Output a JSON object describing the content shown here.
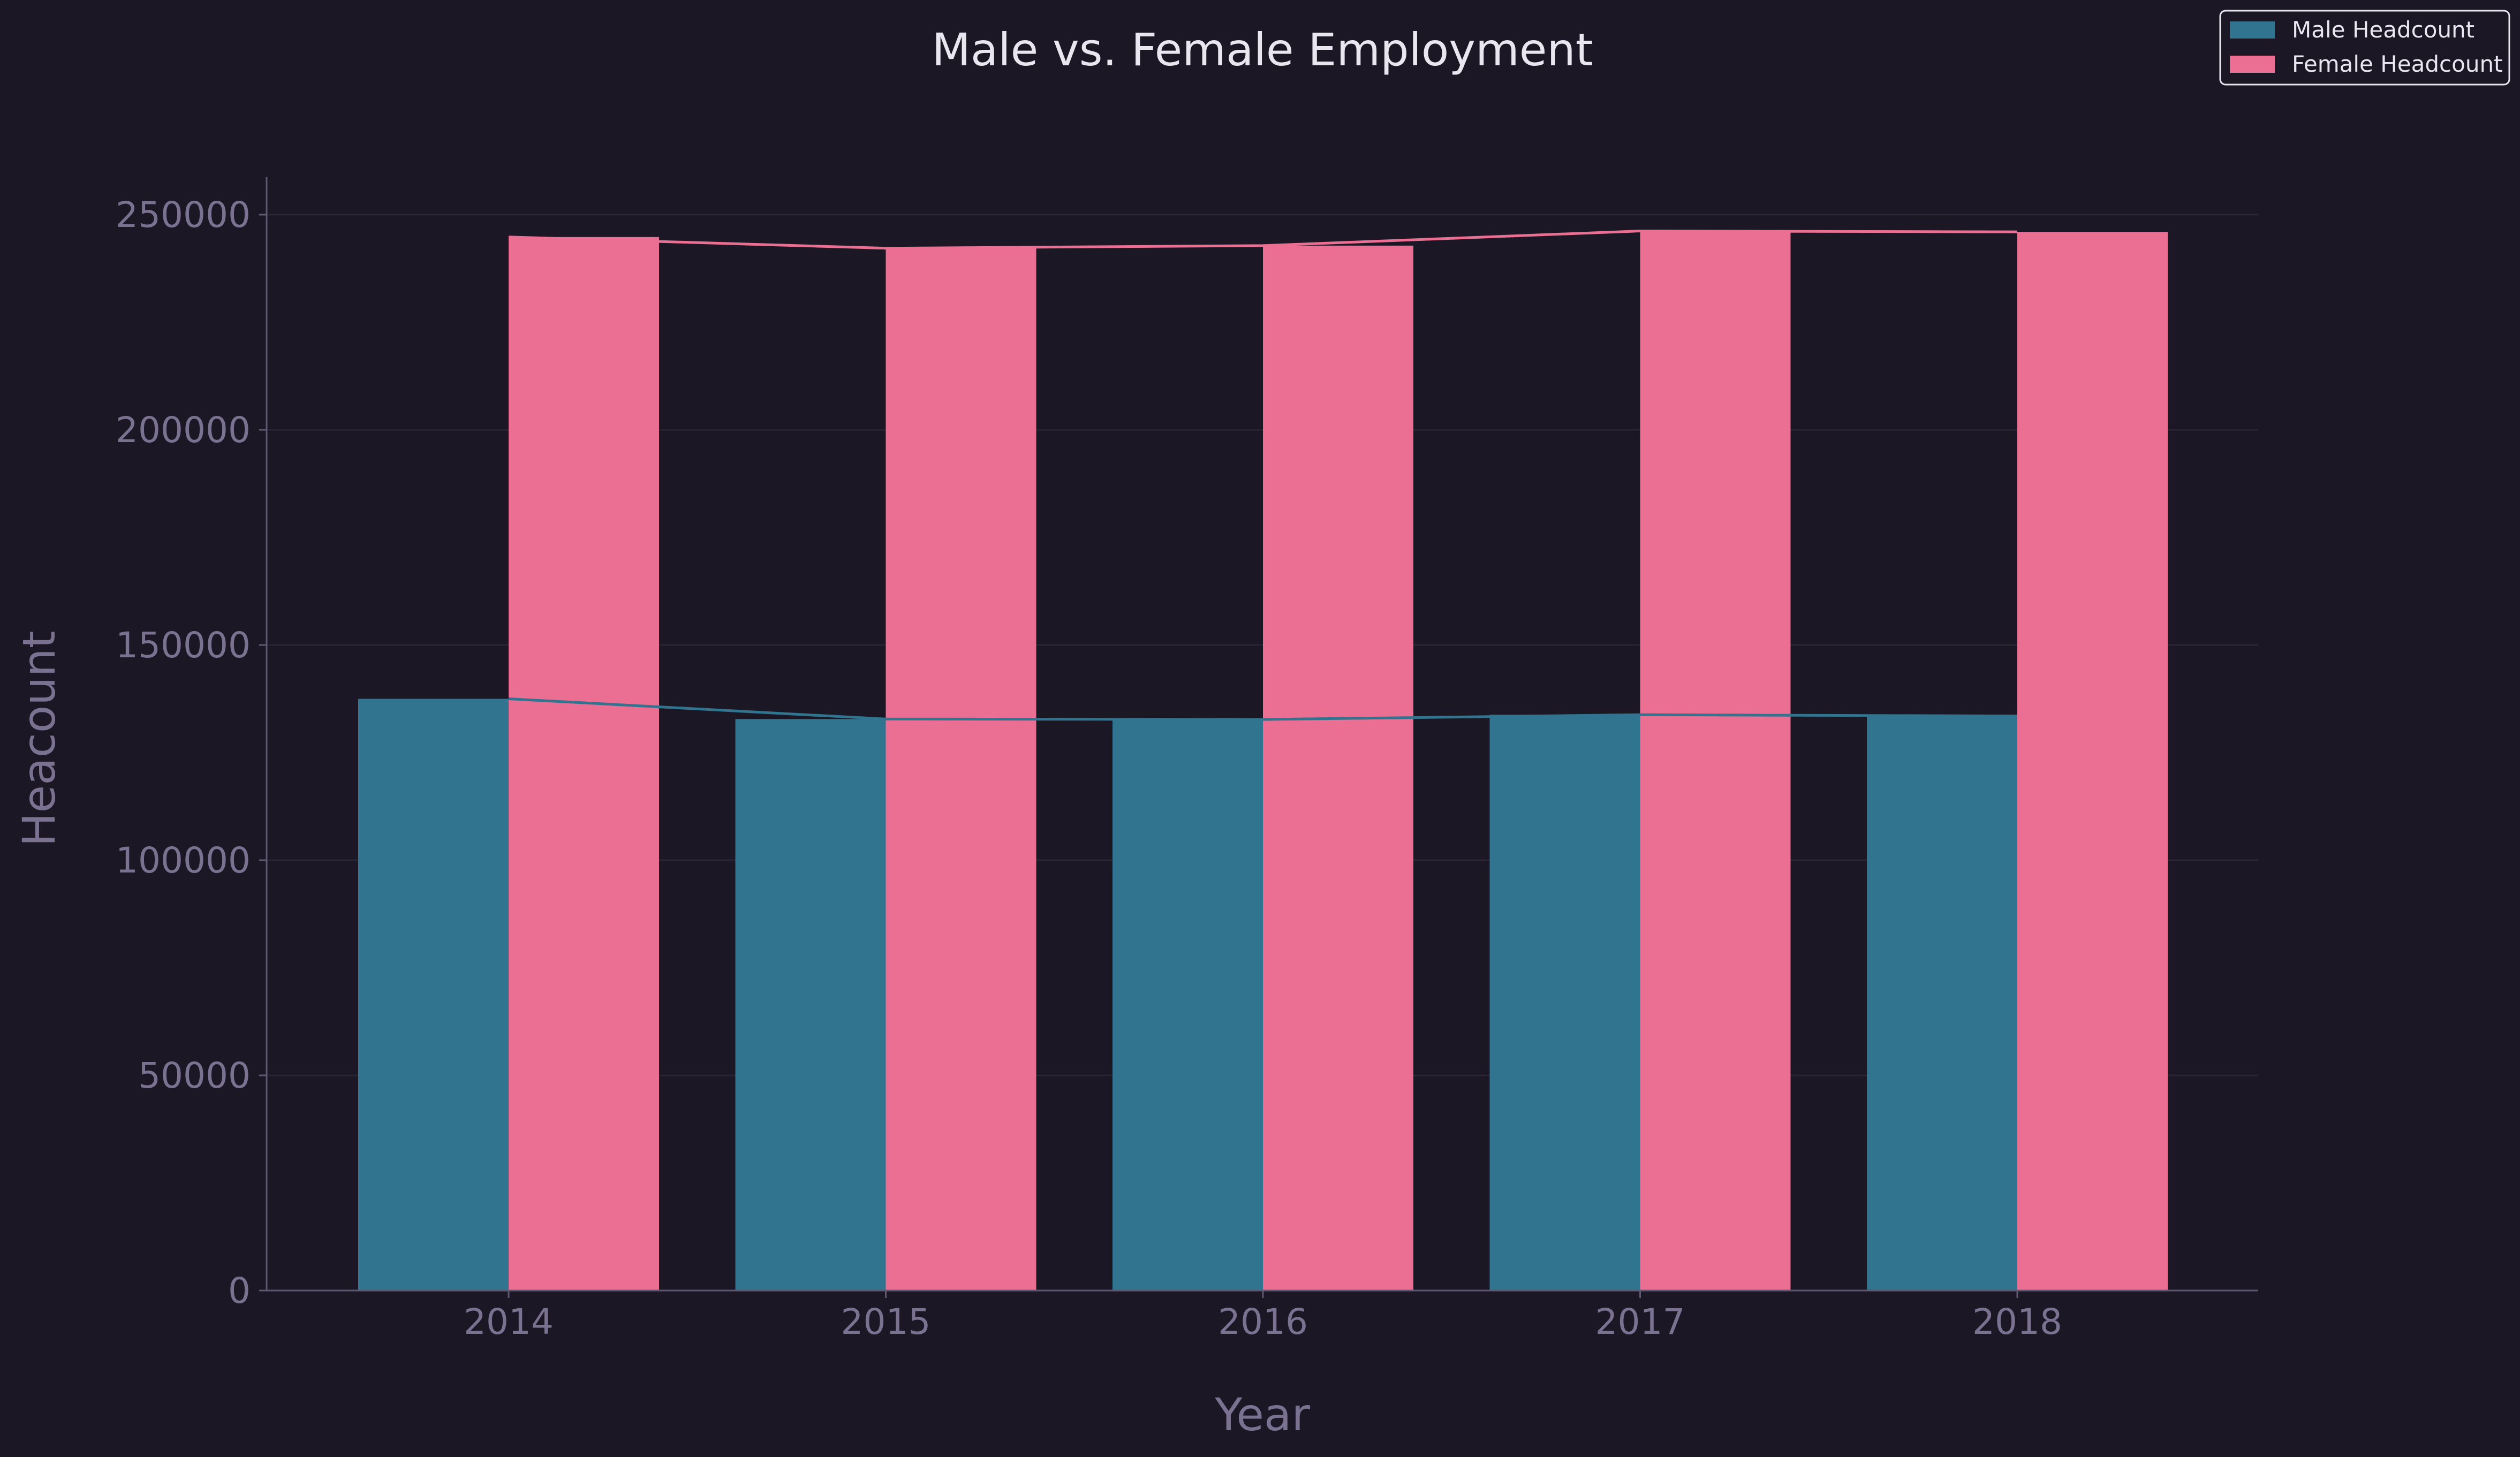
{
  "chart_data": {
    "type": "bar",
    "title": "Male vs. Female Employment",
    "xlabel": "Year",
    "ylabel": "Heacount",
    "categories": [
      "2014",
      "2015",
      "2016",
      "2017",
      "2018"
    ],
    "series": [
      {
        "name": "Male Headcount",
        "color": "#31748f",
        "values": [
          137500,
          132800,
          132700,
          133800,
          133500
        ]
      },
      {
        "name": "Female Headcount",
        "color": "#eb6f92",
        "values": [
          244800,
          242200,
          242800,
          246200,
          246000
        ]
      }
    ],
    "ylim": [
      0,
      258000
    ],
    "yticks": [
      0,
      50000,
      100000,
      150000,
      200000,
      250000
    ],
    "ytick_labels": [
      "0",
      "50000",
      "100000",
      "150000",
      "200000",
      "250000"
    ],
    "grid": true,
    "legend_position": "top-right",
    "trend_lines": true,
    "colors": {
      "background": "#1b1724",
      "axis": "#5f5873",
      "grid": "#2a2535",
      "tick_text": "#7a7290",
      "title_text": "#e8e6ef",
      "legend_border": "#e8e6ef"
    }
  }
}
